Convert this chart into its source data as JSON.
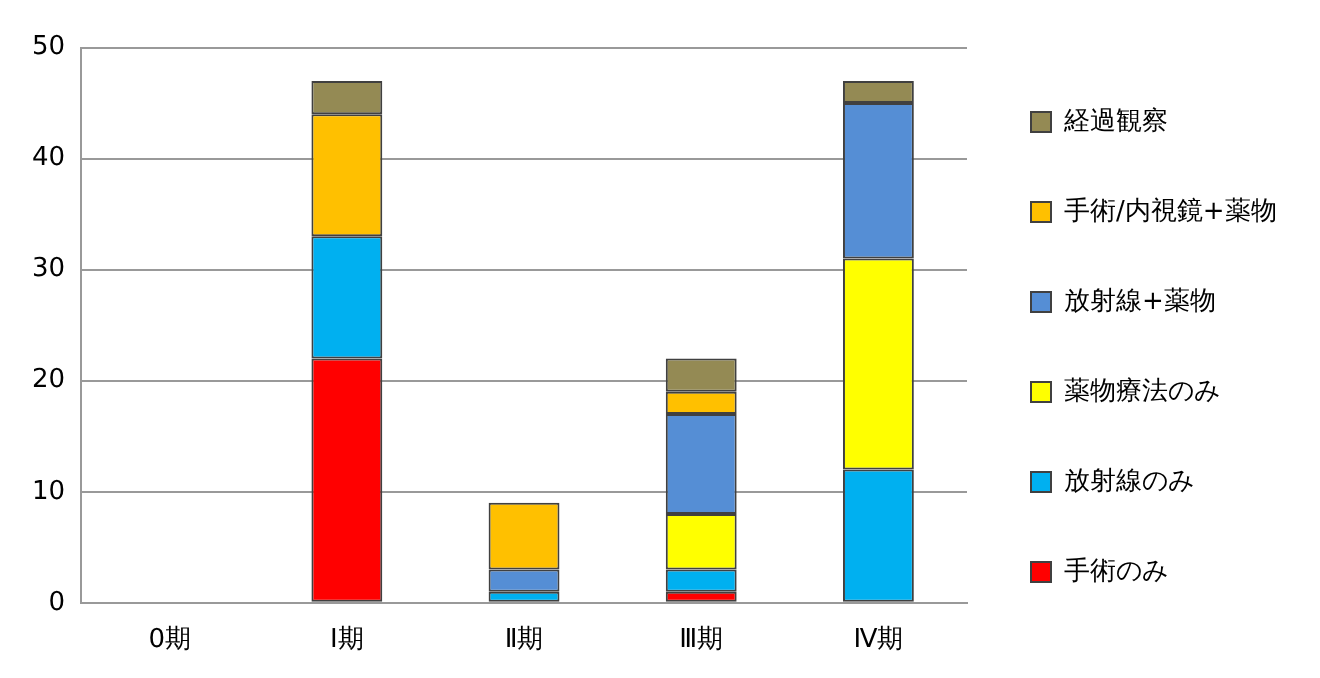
{
  "chart_data": {
    "type": "bar",
    "stacked": true,
    "categories": [
      "0期",
      "Ⅰ期",
      "Ⅱ期",
      "Ⅲ期",
      "Ⅳ期"
    ],
    "series": [
      {
        "name": "手術のみ",
        "color": "#ff0000",
        "values": [
          0,
          22,
          0,
          1,
          0
        ]
      },
      {
        "name": "放射線のみ",
        "color": "#00b0f0",
        "values": [
          0,
          11,
          1,
          2,
          12
        ]
      },
      {
        "name": "薬物療法のみ",
        "color": "#ffff00",
        "values": [
          0,
          0,
          0,
          5,
          19
        ]
      },
      {
        "name": "放射線+薬物",
        "color": "#558ed5",
        "values": [
          0,
          0,
          2,
          9,
          14
        ]
      },
      {
        "name": "手術/内視鏡+薬物",
        "color": "#ffc000",
        "values": [
          0,
          11,
          6,
          2,
          0
        ]
      },
      {
        "name": "経過観察",
        "color": "#948a54",
        "values": [
          0,
          3,
          0,
          3,
          2
        ]
      }
    ],
    "ylim": [
      0,
      50
    ],
    "yticks": [
      0,
      10,
      20,
      30,
      40,
      50
    ],
    "grid": "y",
    "legend": "right"
  }
}
